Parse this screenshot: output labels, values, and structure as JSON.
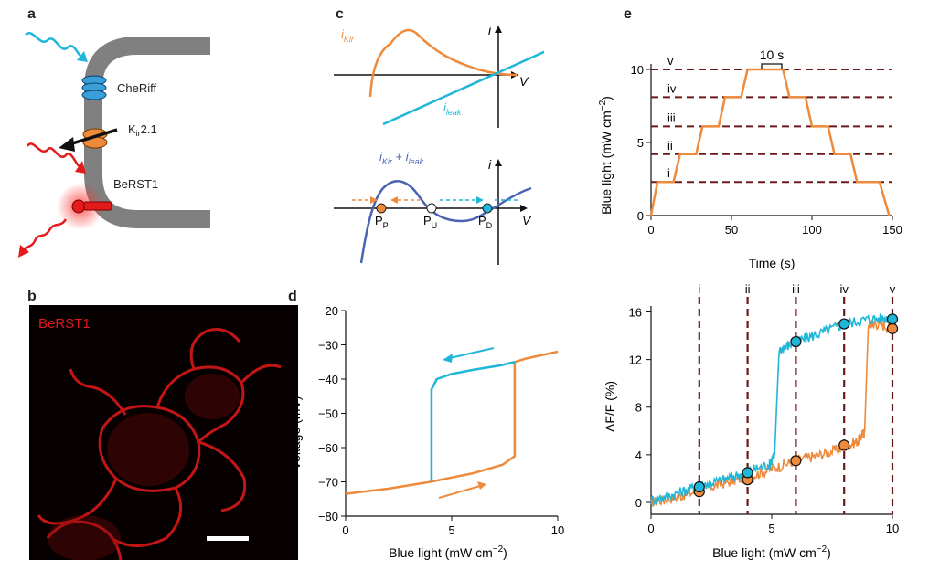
{
  "panels": {
    "a": {
      "letter": "a",
      "labels": {
        "cheriff": "CheRiff",
        "kir_base": "K",
        "kir_sub": "ir",
        "kir_rest": "2.1",
        "berst": "BeRST1"
      },
      "colors": {
        "blue_light": "#1fb6d8",
        "red_light": "#e31b1b",
        "kir": "#ee8a3c",
        "membrane": "#808080"
      }
    },
    "b": {
      "letter": "b",
      "label": "BeRST1",
      "label_color": "#e0181c"
    },
    "c": {
      "letter": "c",
      "top": {
        "i_axis": "i",
        "v_axis": "V",
        "ikir_base": "i",
        "ikir_sub": "Kir",
        "ileak_base": "i",
        "ileak_sub": "leak"
      },
      "bottom": {
        "sum_i1": "i",
        "sum_sub1": "Kir",
        "sum_plus": " + ",
        "sum_i2": "i",
        "sum_sub2": "leak",
        "i_axis": "i",
        "v_axis": "V",
        "pp_base": "P",
        "pp_sub": "P",
        "pu_base": "P",
        "pu_sub": "U",
        "pd_base": "P",
        "pd_sub": "D"
      },
      "colors": {
        "kir": "#ee8a3c",
        "leak": "#1fb6d8",
        "sum": "#4a64b4"
      }
    },
    "d": {
      "letter": "d",
      "ylabel": "Voltage (mV)",
      "xlabel_main": "Blue light (mW cm",
      "xlabel_exp": "−2",
      "xlabel_end": ")"
    },
    "e": {
      "letter": "e",
      "top_ylabel_main": "Blue light (mW cm",
      "top_ylabel_exp": "−2",
      "top_ylabel_end": ")",
      "top_xlabel": "Time (s)",
      "bracket_label": "10 s",
      "bottom_ylabel": "ΔF/F (%)",
      "bottom_xlabel_main": "Blue light (mW cm",
      "bottom_xlabel_exp": "−2",
      "bottom_xlabel_end": ")"
    }
  },
  "chart_data": [
    {
      "id": "d",
      "type": "line",
      "xlabel": "Blue light (mW cm−2)",
      "ylabel": "Voltage (mV)",
      "xlim": [
        0,
        10
      ],
      "ylim": [
        -80,
        -20
      ],
      "xticks": [
        "0",
        "5",
        "10"
      ],
      "yticks": [
        "−20",
        "−30",
        "−40",
        "−50",
        "−60",
        "−70",
        "−80"
      ],
      "series": [
        {
          "color": "#ee8a3c",
          "x": [
            0,
            2,
            4,
            6,
            7.4,
            7.97,
            7.97,
            8.5,
            10
          ],
          "y": [
            -73.5,
            -72,
            -70,
            -67.5,
            -65,
            -62.5,
            -35,
            -34,
            -32
          ]
        },
        {
          "color": "#1fb6d8",
          "x": [
            4.05,
            4.05,
            4.3,
            5,
            6,
            7.3,
            7.97
          ],
          "y": [
            -70,
            -43,
            -40,
            -38.5,
            -37.3,
            -36,
            -35
          ]
        }
      ]
    },
    {
      "id": "e-top",
      "type": "line",
      "xlabel": "Time (s)",
      "ylabel": "Blue light (mW cm−2)",
      "xlim": [
        0,
        150
      ],
      "ylim": [
        0,
        10
      ],
      "xticks": [
        "0",
        "50",
        "100",
        "150"
      ],
      "yticks": [
        "0",
        "5",
        "10"
      ],
      "series": [
        {
          "color": "#ee8a3c",
          "x": [
            0,
            4,
            14,
            18,
            28,
            32,
            42,
            46,
            56,
            60,
            70,
            74,
            82,
            86,
            96,
            100,
            110,
            114,
            124,
            128,
            138,
            142,
            148
          ],
          "y": [
            0,
            2.3,
            2.3,
            4.2,
            4.2,
            6.1,
            6.1,
            8.1,
            8.1,
            10,
            10,
            10,
            10,
            8.1,
            8.1,
            6.1,
            6.1,
            4.2,
            4.2,
            2.3,
            2.3,
            2.3,
            0
          ]
        }
      ],
      "levels": [
        {
          "label": "i",
          "value": 2.3
        },
        {
          "label": "ii",
          "value": 4.2
        },
        {
          "label": "iii",
          "value": 6.1
        },
        {
          "label": "iv",
          "value": 8.1
        },
        {
          "label": "v",
          "value": 10
        }
      ]
    },
    {
      "id": "e-bottom",
      "type": "line",
      "xlabel": "Blue light (mW cm−2)",
      "ylabel": "ΔF/F (%)",
      "xlim": [
        0,
        10
      ],
      "ylim": [
        -1,
        16.5
      ],
      "xticks": [
        "0",
        "5",
        "10"
      ],
      "yticks": [
        "0",
        "4",
        "8",
        "12",
        "16"
      ],
      "vlines": [
        {
          "label": "i",
          "x": 2
        },
        {
          "label": "ii",
          "x": 4
        },
        {
          "label": "iii",
          "x": 6
        },
        {
          "label": "iv",
          "x": 8
        },
        {
          "label": "v",
          "x": 10
        }
      ],
      "series": [
        {
          "color": "#ee8a3c",
          "x": [
            0,
            1,
            2,
            3,
            4,
            5,
            6,
            7,
            8,
            8.6,
            8.85,
            9.0,
            9.3,
            10
          ],
          "y": [
            0,
            0.4,
            1,
            1.6,
            2.1,
            2.8,
            3.5,
            4,
            4.6,
            5.2,
            6,
            15,
            15,
            14.7
          ]
        },
        {
          "color": "#1fb6d8",
          "x": [
            0,
            1,
            2,
            3,
            4,
            4.9,
            5.12,
            5.3,
            6,
            7,
            8,
            9,
            10
          ],
          "y": [
            0.2,
            0.7,
            1.4,
            1.9,
            2.6,
            3.2,
            4,
            12.8,
            13.5,
            14.2,
            15,
            15.4,
            15.5
          ]
        }
      ],
      "markers": {
        "blue": [
          [
            2,
            1.3
          ],
          [
            4,
            2.5
          ],
          [
            6,
            13.5
          ],
          [
            8,
            15
          ],
          [
            10,
            15.4
          ]
        ],
        "orange": [
          [
            2,
            0.9
          ],
          [
            4,
            1.9
          ],
          [
            6,
            3.5
          ],
          [
            8,
            4.8
          ],
          [
            10,
            14.6
          ]
        ]
      }
    }
  ]
}
